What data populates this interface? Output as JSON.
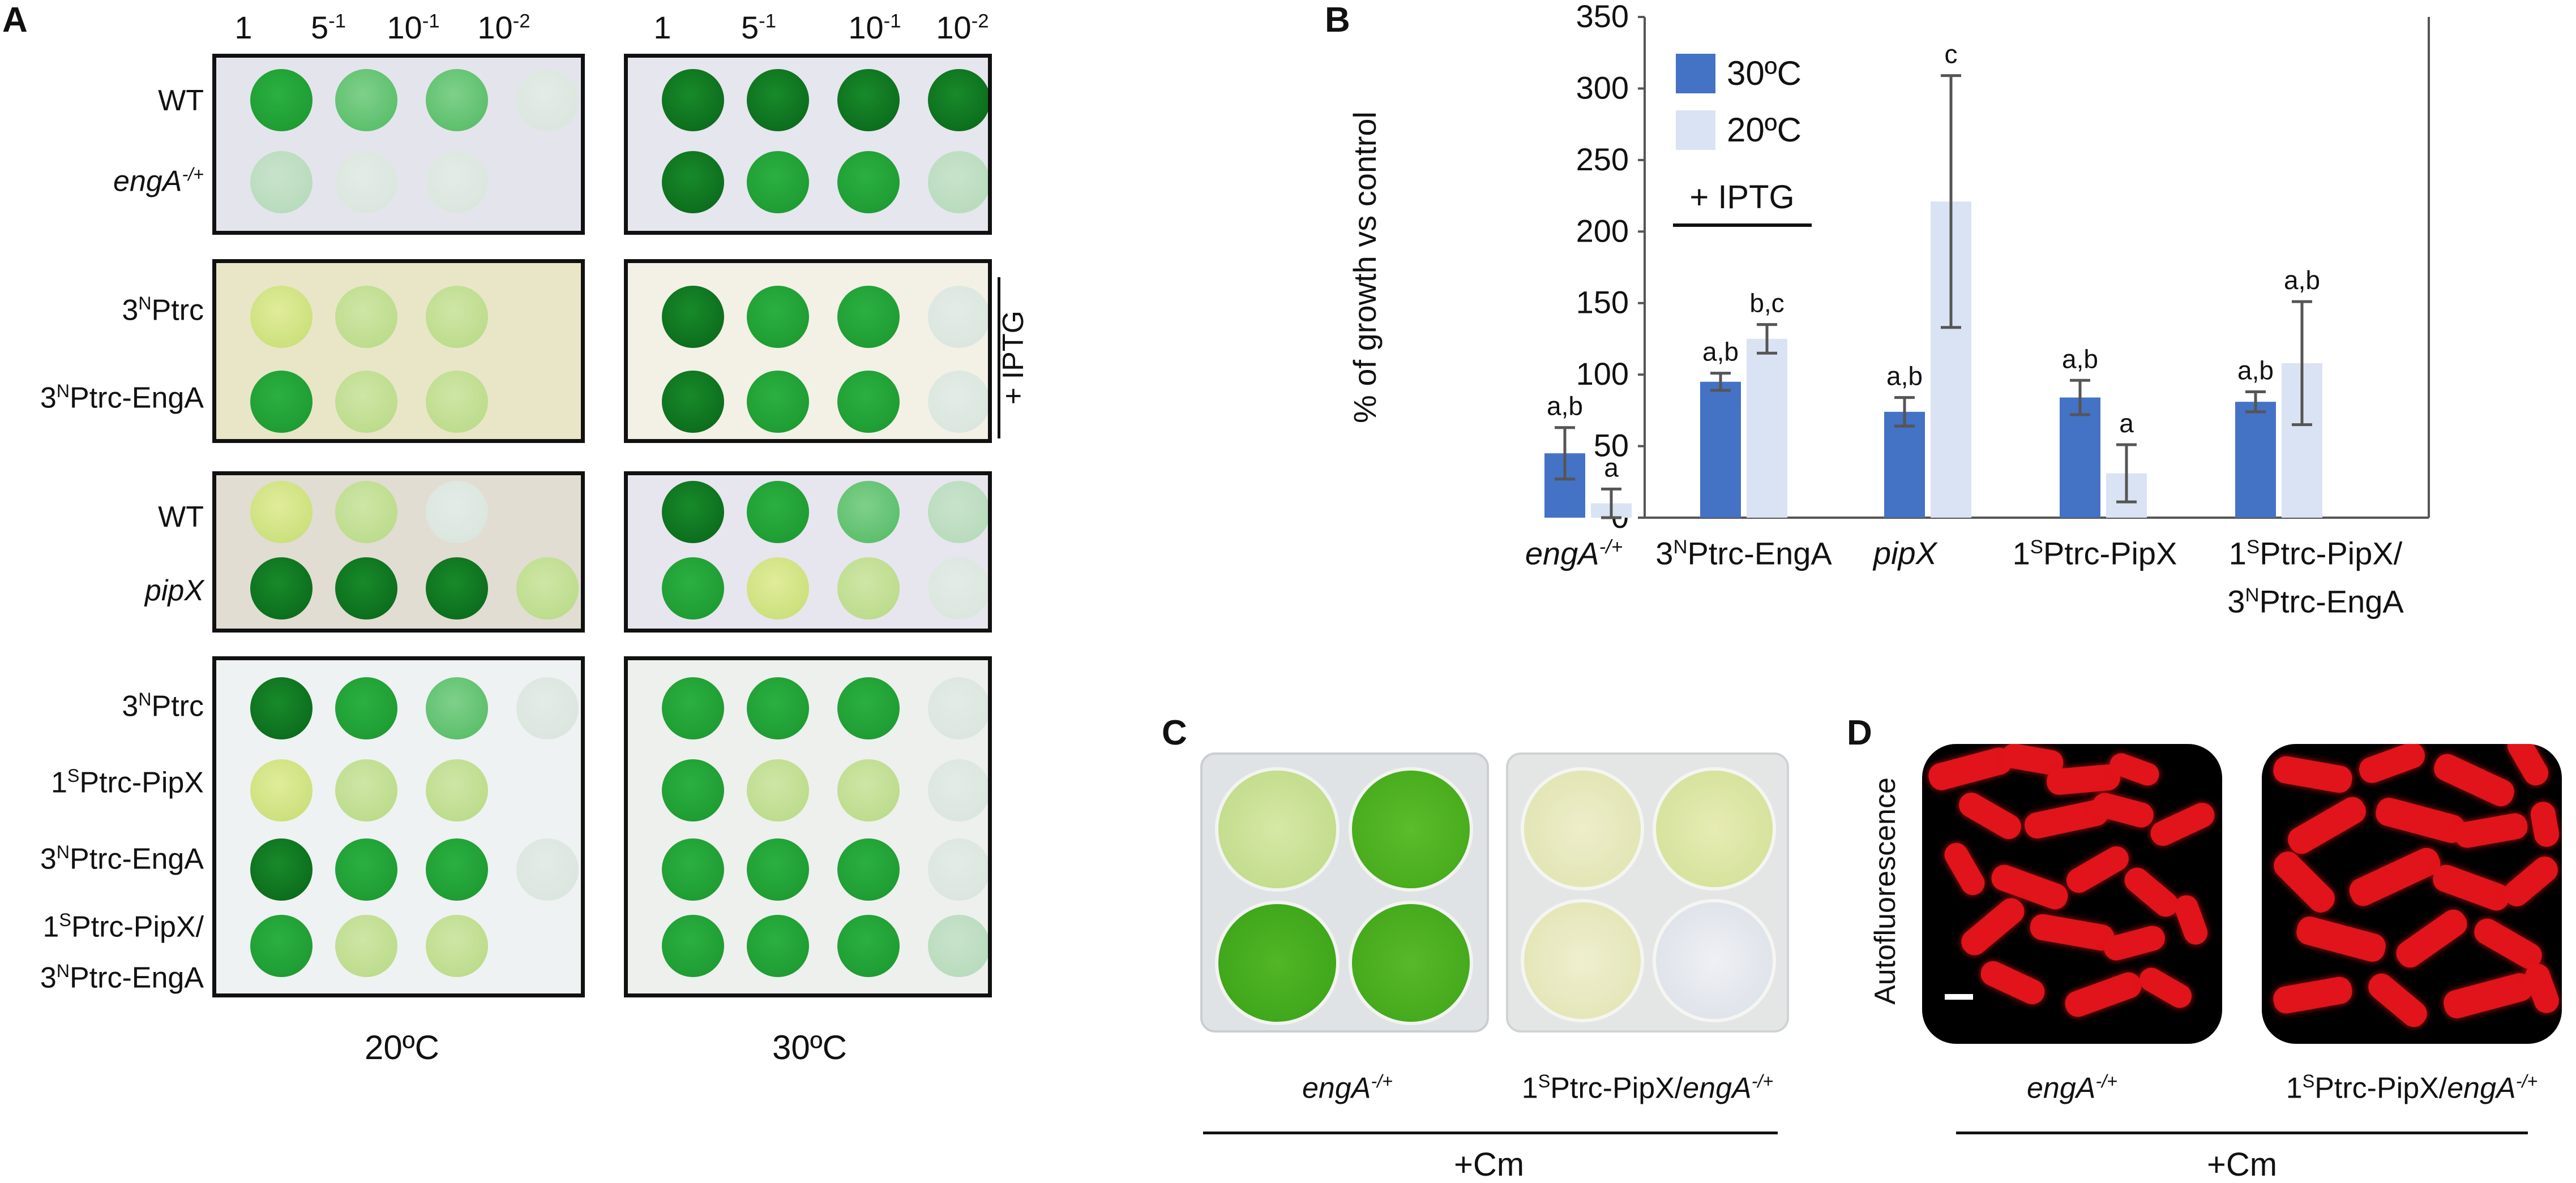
{
  "panel_a": {
    "letter": "A",
    "dilutions": [
      "1",
      "5",
      "10",
      "10"
    ],
    "dilution_exps": [
      "",
      "-1",
      "-1",
      "-2"
    ],
    "rows": {
      "wt1": "WT",
      "enga_base": "engA",
      "enga_sup": "-/+",
      "ptrc_base": "3",
      "ptrc_sup": "N",
      "ptrc_rest": "Ptrc",
      "ptrc_enga_rest": "Ptrc-EngA",
      "wt2": "WT",
      "pipx": "pipX",
      "pipx_s_base": "1",
      "pipx_s_sup": "S",
      "pipx_s_rest": "Ptrc-PipX",
      "combo_line1_rest": "Ptrc-PipX/",
      "combo_line2_rest": "Ptrc-EngA"
    },
    "iptg_label": "+ IPTG",
    "temp_left": "20ºC",
    "temp_right": "30ºC"
  },
  "panel_b": {
    "letter": "B",
    "iptg_label": "+ IPTG",
    "group_labels": {
      "g1_base": "engA",
      "g1_sup": "-/+",
      "g2_base": "3",
      "g2_sup": "N",
      "g2_rest": "Ptrc-EngA",
      "g3": "pipX",
      "g4_base": "1",
      "g4_sup": "S",
      "g4_rest": "Ptrc-PipX",
      "g5a_base": "1",
      "g5a_sup": "S",
      "g5a_rest": "Ptrc-PipX/",
      "g5b_base": "3",
      "g5b_sup": "N",
      "g5b_rest": "Ptrc-EngA"
    }
  },
  "chart_data": {
    "type": "bar",
    "title": "",
    "xlabel": "",
    "ylabel": "% of growth vs control",
    "ylim": [
      0,
      350
    ],
    "yticks": [
      0,
      50,
      100,
      150,
      200,
      250,
      300,
      350
    ],
    "categories": [
      "engA-/+",
      "3NPtrc-EngA",
      "pipX",
      "1SPtrc-PipX",
      "1SPtrc-PipX/3NPtrc-EngA"
    ],
    "legend_position": "top-left",
    "series": [
      {
        "name": "30ºC",
        "color": "#4472c4",
        "values": [
          45,
          95,
          74,
          84,
          81
        ],
        "errors": [
          18,
          6,
          10,
          12,
          7
        ],
        "labels": [
          "a,b",
          "a,b",
          "a,b",
          "a,b",
          "a,b"
        ]
      },
      {
        "name": "20ºC",
        "color": "#dae3f3",
        "values": [
          10,
          125,
          221,
          31,
          108
        ],
        "errors": [
          10,
          10,
          88,
          20,
          43
        ],
        "labels": [
          "a",
          "b,c",
          "c",
          "a",
          "a,b"
        ]
      }
    ]
  },
  "panel_c": {
    "letter": "C",
    "label_left": "engA",
    "label_left_sup": "-/+",
    "label_right_pre": "1",
    "label_right_pre_sup": "S",
    "label_right_mid": "Ptrc-PipX/",
    "label_right_it": "engA",
    "label_right_sup": "-/+",
    "treatment": "+Cm"
  },
  "panel_d": {
    "letter": "D",
    "ylabel": "Autofluorescence",
    "label_left": "engA",
    "label_left_sup": "-/+",
    "label_right_pre": "1",
    "label_right_pre_sup": "S",
    "label_right_mid": "Ptrc-PipX/",
    "label_right_it": "engA",
    "label_right_sup": "-/+",
    "treatment": "+Cm"
  },
  "colors": {
    "bar_30": "#4472c4",
    "bar_20": "#dae3f3",
    "colony_green": "#1f9a2c",
    "fluor_red": "#e0141a"
  }
}
